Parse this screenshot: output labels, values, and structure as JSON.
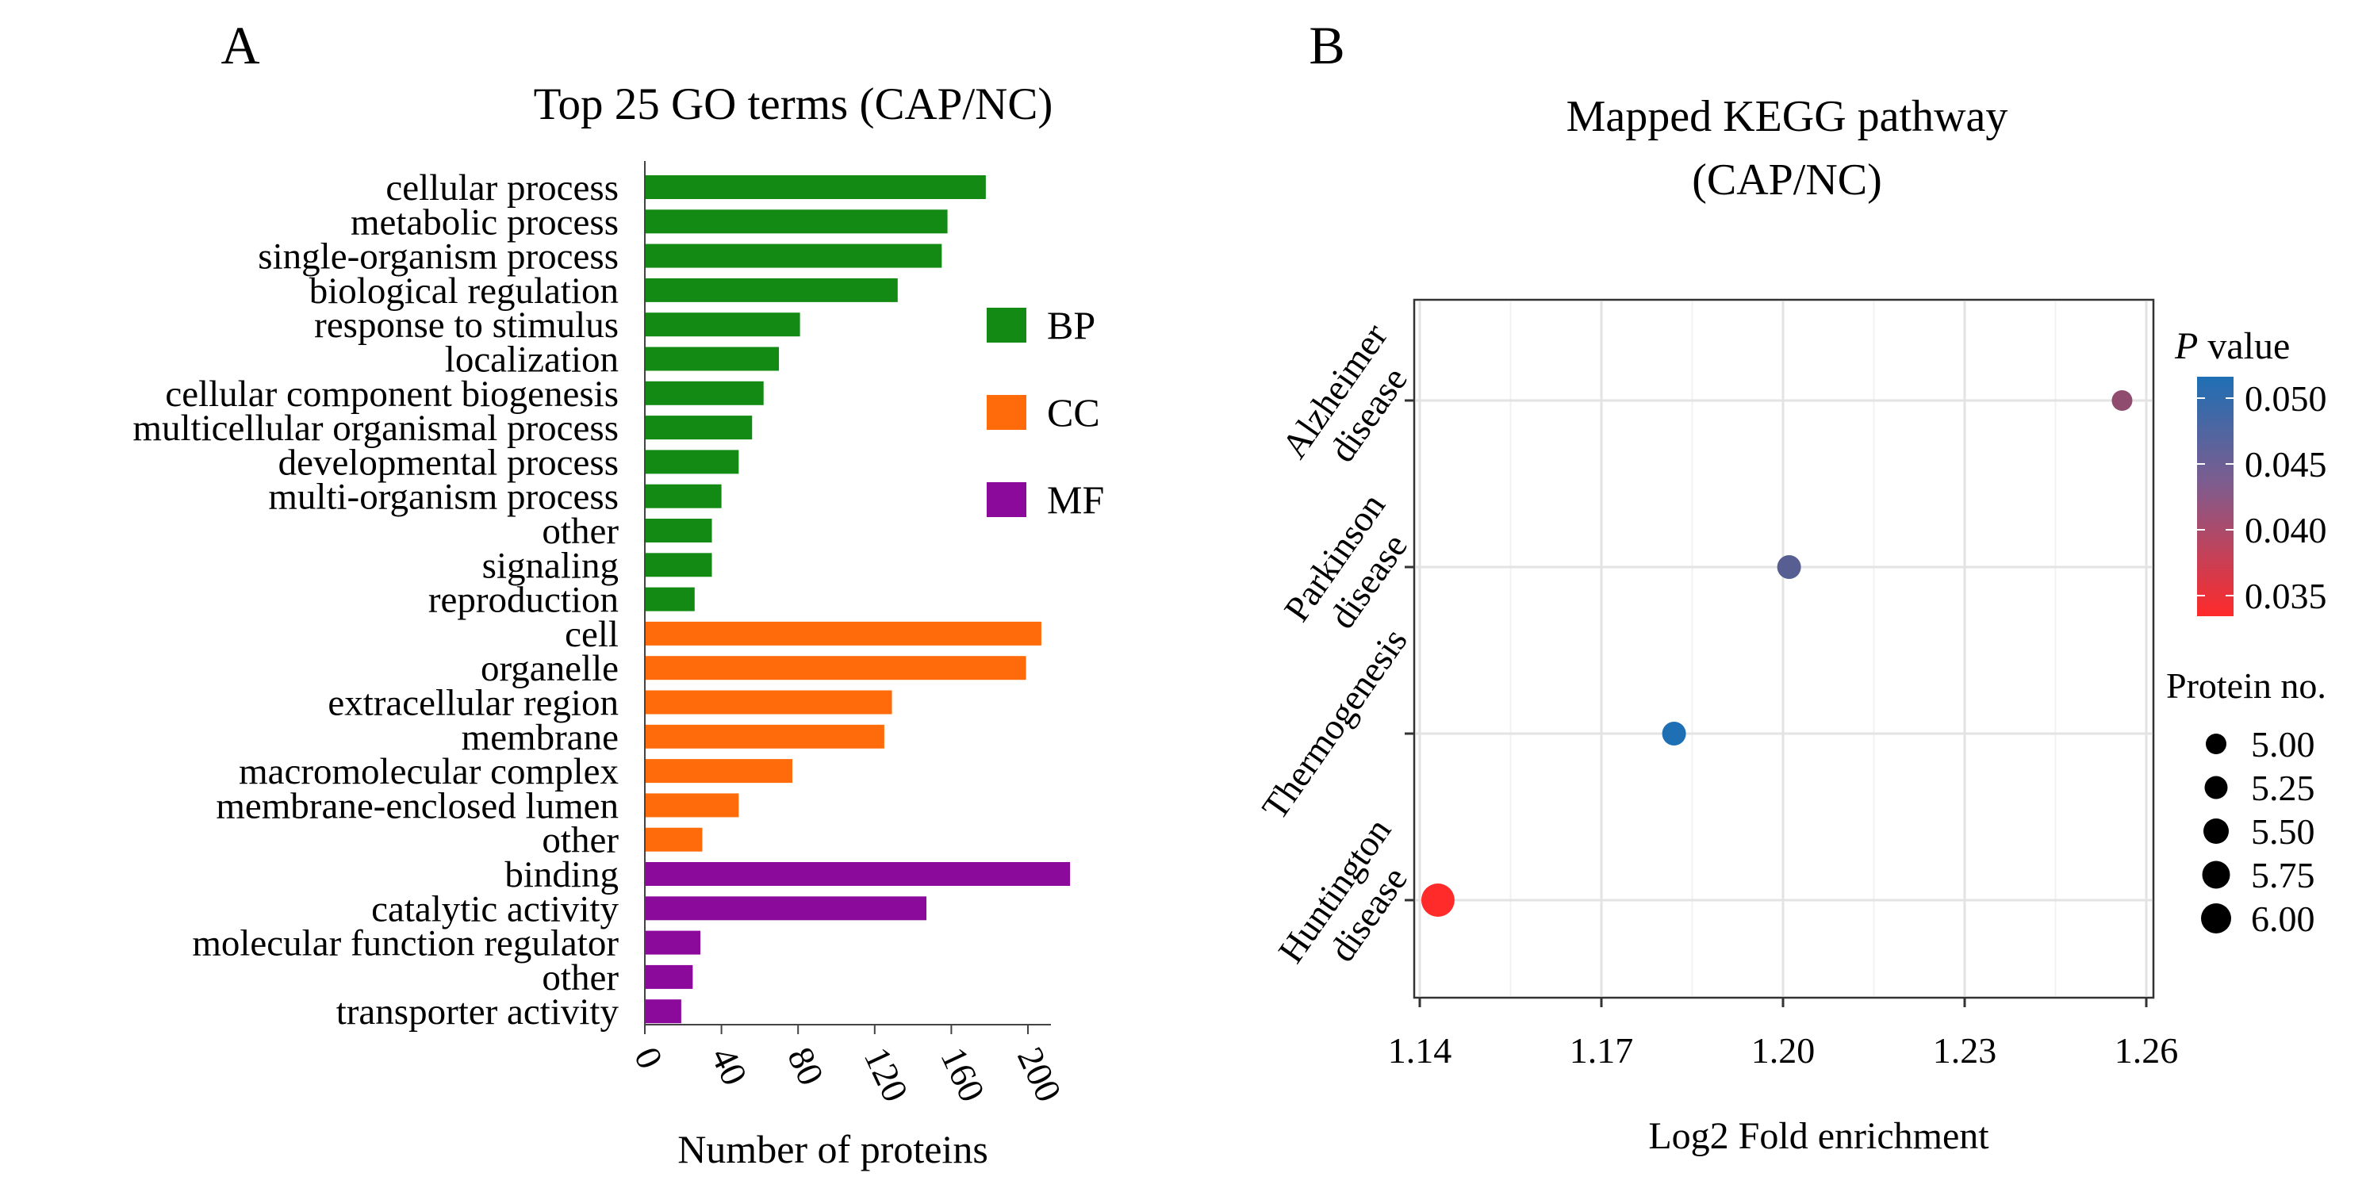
{
  "panel_a": {
    "label": "A",
    "legend": [
      {
        "key": "BP",
        "label": "BP",
        "color": "#138A13"
      },
      {
        "key": "CC",
        "label": "CC",
        "color": "#FF6A0A"
      },
      {
        "key": "MF",
        "label": "MF",
        "color": "#8B0A9C"
      }
    ]
  },
  "panel_b": {
    "label": "B",
    "color_legend": {
      "title_italic": "P",
      "title_rest": " value",
      "ticks": [
        "0.050",
        "0.045",
        "0.040",
        "0.035"
      ]
    },
    "size_legend": {
      "title": "Protein no.",
      "items": [
        "5.00",
        "5.25",
        "5.50",
        "5.75",
        "6.00"
      ]
    }
  },
  "chart_data": [
    {
      "type": "bar",
      "orientation": "horizontal",
      "title": "Top 25 GO terms (CAP/NC)",
      "xlabel": "Number of proteins",
      "ylabel": "",
      "xlim": [
        0,
        220
      ],
      "xticks": [
        0,
        40,
        80,
        120,
        160,
        200
      ],
      "categories": [
        "cellular process",
        "metabolic process",
        "single-organism process",
        "biological regulation",
        "response to stimulus",
        "localization",
        "cellular component biogenesis",
        "multicellular organismal process",
        "developmental process",
        "multi-organism process",
        "other",
        "signaling",
        "reproduction",
        "cell",
        "organelle",
        "extracellular region",
        "membrane",
        "macromolecular complex",
        "membrane-enclosed lumen",
        "other",
        "binding",
        "catalytic activity",
        "molecular function regulator",
        "other",
        "transporter activity"
      ],
      "values": [
        178,
        158,
        155,
        132,
        81,
        70,
        62,
        56,
        49,
        40,
        35,
        35,
        26,
        207,
        199,
        129,
        125,
        77,
        49,
        30,
        222,
        147,
        29,
        25,
        19
      ],
      "groups": [
        "BP",
        "BP",
        "BP",
        "BP",
        "BP",
        "BP",
        "BP",
        "BP",
        "BP",
        "BP",
        "BP",
        "BP",
        "BP",
        "CC",
        "CC",
        "CC",
        "CC",
        "CC",
        "CC",
        "CC",
        "MF",
        "MF",
        "MF",
        "MF",
        "MF"
      ],
      "legend": [
        "BP",
        "CC",
        "MF"
      ]
    },
    {
      "type": "scatter",
      "title": "Mapped KEGG pathway\n(CAP/NC)",
      "xlabel": "Log2 Fold enrichment",
      "ylabel": "",
      "xlim": [
        1.14,
        1.26
      ],
      "xticks": [
        "1.14",
        "1.17",
        "1.20",
        "1.23",
        "1.26"
      ],
      "categories": [
        "Alzheimer disease",
        "Parkinson disease",
        "Thermogenesis",
        "Huntington disease"
      ],
      "points": [
        {
          "pathway": "Alzheimer disease",
          "x": 1.256,
          "p_value": 0.043,
          "protein_no": 5
        },
        {
          "pathway": "Parkinson disease",
          "x": 1.201,
          "p_value": 0.047,
          "protein_no": 5.25
        },
        {
          "pathway": "Thermogenesis",
          "x": 1.182,
          "p_value": 0.051,
          "protein_no": 5.25
        },
        {
          "pathway": "Huntington disease",
          "x": 1.143,
          "p_value": 0.035,
          "protein_no": 6
        }
      ],
      "color_scale": {
        "low_value": 0.035,
        "low_color": "#FF2A2A",
        "high_value": 0.051,
        "high_color": "#1F6FB4"
      },
      "grid": true
    }
  ]
}
